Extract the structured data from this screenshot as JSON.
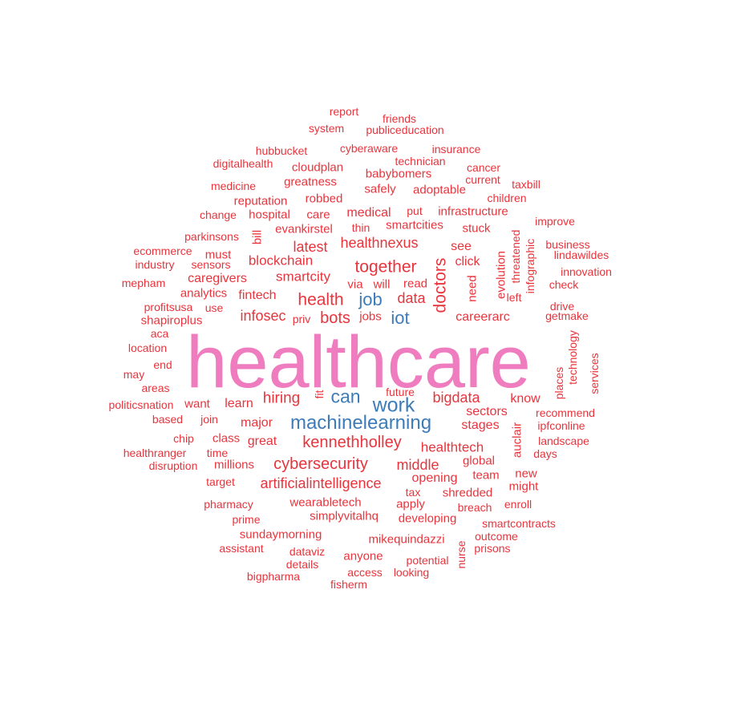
{
  "colors": {
    "large": "#ef7cbf",
    "medium": "#3d7cb8",
    "small": "#e8343c"
  },
  "words": [
    {
      "text": "healthcare",
      "tier": "large"
    },
    {
      "text": "machinelearning",
      "tier": "medium"
    },
    {
      "text": "work",
      "tier": "medium"
    },
    {
      "text": "can",
      "tier": "medium"
    },
    {
      "text": "job",
      "tier": "medium"
    },
    {
      "text": "iot",
      "tier": "medium"
    },
    {
      "text": "together",
      "tier": "small"
    },
    {
      "text": "doctors",
      "tier": "small"
    },
    {
      "text": "health",
      "tier": "small"
    },
    {
      "text": "kennethholley",
      "tier": "small"
    },
    {
      "text": "cybersecurity",
      "tier": "small"
    },
    {
      "text": "artificialintelligence",
      "tier": "small"
    },
    {
      "text": "hiring",
      "tier": "small"
    },
    {
      "text": "bigdata",
      "tier": "small"
    },
    {
      "text": "data",
      "tier": "small"
    },
    {
      "text": "bots",
      "tier": "small"
    },
    {
      "text": "latest",
      "tier": "small"
    },
    {
      "text": "healthnexus",
      "tier": "small"
    },
    {
      "text": "smartcity",
      "tier": "small"
    },
    {
      "text": "infosec",
      "tier": "small"
    },
    {
      "text": "blockchain",
      "tier": "small"
    },
    {
      "text": "middle",
      "tier": "small"
    },
    {
      "text": "healthtech",
      "tier": "small"
    },
    {
      "text": "sectors",
      "tier": "small"
    },
    {
      "text": "stages",
      "tier": "small"
    },
    {
      "text": "know",
      "tier": "small"
    },
    {
      "text": "careerarc",
      "tier": "small"
    },
    {
      "text": "great",
      "tier": "small"
    },
    {
      "text": "major",
      "tier": "small"
    },
    {
      "text": "learn",
      "tier": "small"
    },
    {
      "text": "fintech",
      "tier": "small"
    },
    {
      "text": "caregivers",
      "tier": "small"
    },
    {
      "text": "evankirstel",
      "tier": "small"
    },
    {
      "text": "smartcities",
      "tier": "small"
    },
    {
      "text": "medical",
      "tier": "small"
    },
    {
      "text": "infrastructure",
      "tier": "small"
    },
    {
      "text": "hospital",
      "tier": "small"
    },
    {
      "text": "care",
      "tier": "small"
    },
    {
      "text": "reputation",
      "tier": "small"
    },
    {
      "text": "robbed",
      "tier": "small"
    },
    {
      "text": "safely",
      "tier": "small"
    },
    {
      "text": "adoptable",
      "tier": "small"
    },
    {
      "text": "greatness",
      "tier": "small"
    },
    {
      "text": "babybomers",
      "tier": "small"
    },
    {
      "text": "cloudplan",
      "tier": "small"
    },
    {
      "text": "technician",
      "tier": "small"
    },
    {
      "text": "cyberaware",
      "tier": "small"
    },
    {
      "text": "insurance",
      "tier": "small"
    },
    {
      "text": "hubbucket",
      "tier": "small"
    },
    {
      "text": "digitalhealth",
      "tier": "small"
    },
    {
      "text": "medicine",
      "tier": "small"
    },
    {
      "text": "publiceducation",
      "tier": "small"
    },
    {
      "text": "system",
      "tier": "small"
    },
    {
      "text": "friends",
      "tier": "small"
    },
    {
      "text": "report",
      "tier": "small"
    },
    {
      "text": "cancer",
      "tier": "small"
    },
    {
      "text": "current",
      "tier": "small"
    },
    {
      "text": "taxbill",
      "tier": "small"
    },
    {
      "text": "children",
      "tier": "small"
    },
    {
      "text": "improve",
      "tier": "small"
    },
    {
      "text": "business",
      "tier": "small"
    },
    {
      "text": "lindawildes",
      "tier": "small"
    },
    {
      "text": "innovation",
      "tier": "small"
    },
    {
      "text": "check",
      "tier": "small"
    },
    {
      "text": "drive",
      "tier": "small"
    },
    {
      "text": "getmake",
      "tier": "small"
    },
    {
      "text": "change",
      "tier": "small"
    },
    {
      "text": "parkinsons",
      "tier": "small"
    },
    {
      "text": "ecommerce",
      "tier": "small"
    },
    {
      "text": "must",
      "tier": "small"
    },
    {
      "text": "industry",
      "tier": "small"
    },
    {
      "text": "sensors",
      "tier": "small"
    },
    {
      "text": "mepham",
      "tier": "small"
    },
    {
      "text": "analytics",
      "tier": "small"
    },
    {
      "text": "profitsusa",
      "tier": "small"
    },
    {
      "text": "use",
      "tier": "small"
    },
    {
      "text": "shapiroplus",
      "tier": "small"
    },
    {
      "text": "aca",
      "tier": "small"
    },
    {
      "text": "location",
      "tier": "small"
    },
    {
      "text": "end",
      "tier": "small"
    },
    {
      "text": "may",
      "tier": "small"
    },
    {
      "text": "areas",
      "tier": "small"
    },
    {
      "text": "politicsnation",
      "tier": "small"
    },
    {
      "text": "want",
      "tier": "small"
    },
    {
      "text": "based",
      "tier": "small"
    },
    {
      "text": "join",
      "tier": "small"
    },
    {
      "text": "chip",
      "tier": "small"
    },
    {
      "text": "class",
      "tier": "small"
    },
    {
      "text": "healthranger",
      "tier": "small"
    },
    {
      "text": "time",
      "tier": "small"
    },
    {
      "text": "disruption",
      "tier": "small"
    },
    {
      "text": "millions",
      "tier": "small"
    },
    {
      "text": "target",
      "tier": "small"
    },
    {
      "text": "pharmacy",
      "tier": "small"
    },
    {
      "text": "prime",
      "tier": "small"
    },
    {
      "text": "assistant",
      "tier": "small"
    },
    {
      "text": "sundaymorning",
      "tier": "small"
    },
    {
      "text": "wearabletech",
      "tier": "small"
    },
    {
      "text": "simplyvitalhq",
      "tier": "small"
    },
    {
      "text": "dataviz",
      "tier": "small"
    },
    {
      "text": "details",
      "tier": "small"
    },
    {
      "text": "bigpharma",
      "tier": "small"
    },
    {
      "text": "anyone",
      "tier": "small"
    },
    {
      "text": "access",
      "tier": "small"
    },
    {
      "text": "fisherm",
      "tier": "small"
    },
    {
      "text": "looking",
      "tier": "small"
    },
    {
      "text": "potential",
      "tier": "small"
    },
    {
      "text": "mikequindazzi",
      "tier": "small"
    },
    {
      "text": "developing",
      "tier": "small"
    },
    {
      "text": "apply",
      "tier": "small"
    },
    {
      "text": "tax",
      "tier": "small"
    },
    {
      "text": "opening",
      "tier": "small"
    },
    {
      "text": "shredded",
      "tier": "small"
    },
    {
      "text": "breach",
      "tier": "small"
    },
    {
      "text": "team",
      "tier": "small"
    },
    {
      "text": "global",
      "tier": "small"
    },
    {
      "text": "new",
      "tier": "small"
    },
    {
      "text": "might",
      "tier": "small"
    },
    {
      "text": "enroll",
      "tier": "small"
    },
    {
      "text": "smartcontracts",
      "tier": "small"
    },
    {
      "text": "outcome",
      "tier": "small"
    },
    {
      "text": "prisons",
      "tier": "small"
    },
    {
      "text": "nurse",
      "tier": "small"
    },
    {
      "text": "landscape",
      "tier": "small"
    },
    {
      "text": "days",
      "tier": "small"
    },
    {
      "text": "ipfconline",
      "tier": "small"
    },
    {
      "text": "recommend",
      "tier": "small"
    },
    {
      "text": "auclair",
      "tier": "small"
    },
    {
      "text": "places",
      "tier": "small"
    },
    {
      "text": "technology",
      "tier": "small"
    },
    {
      "text": "services",
      "tier": "small"
    },
    {
      "text": "future",
      "tier": "small"
    },
    {
      "text": "fit",
      "tier": "small"
    },
    {
      "text": "jobs",
      "tier": "small"
    },
    {
      "text": "priv",
      "tier": "small"
    },
    {
      "text": "via",
      "tier": "small"
    },
    {
      "text": "will",
      "tier": "small"
    },
    {
      "text": "read",
      "tier": "small"
    },
    {
      "text": "need",
      "tier": "small"
    },
    {
      "text": "click",
      "tier": "small"
    },
    {
      "text": "see",
      "tier": "small"
    },
    {
      "text": "stuck",
      "tier": "small"
    },
    {
      "text": "evolution",
      "tier": "small"
    },
    {
      "text": "threatened",
      "tier": "small"
    },
    {
      "text": "infographic",
      "tier": "small"
    },
    {
      "text": "left",
      "tier": "small"
    },
    {
      "text": "thin",
      "tier": "small"
    },
    {
      "text": "put",
      "tier": "small"
    },
    {
      "text": "bill",
      "tier": "small"
    }
  ]
}
